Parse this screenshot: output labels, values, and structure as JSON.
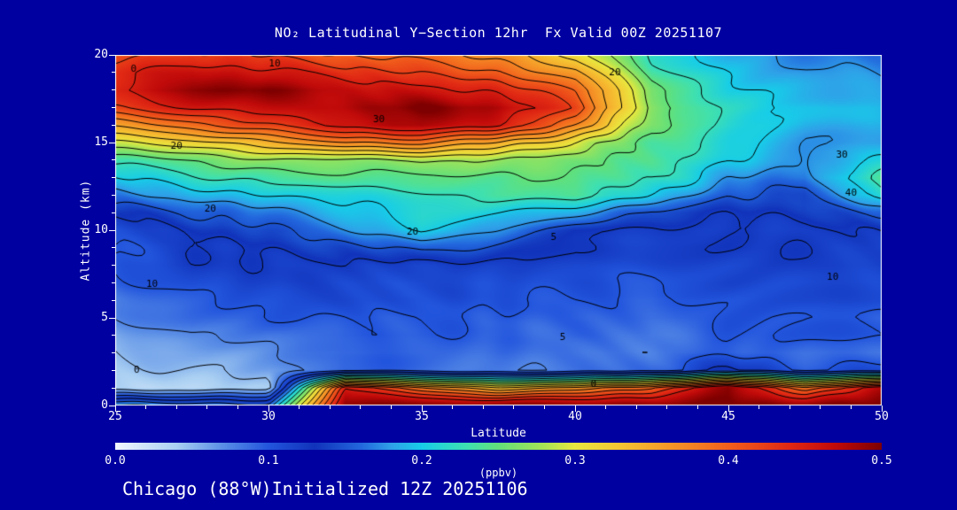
{
  "colors": {
    "background": "#0000A1",
    "frame": "#FFFFFF",
    "text": "#FFFFFF",
    "contour": "#000000"
  },
  "header": {
    "title": "NO₂ Latitudinal Y−Section 12hr  Fx Valid 00Z 20251107"
  },
  "footer": {
    "text": "Chicago (88°W)Initialized 12Z 20251106"
  },
  "axes": {
    "y_label": "Altitude (km)",
    "x_label": "Latitude",
    "y_ticks": [
      0,
      5,
      10,
      15,
      20
    ],
    "x_ticks": [
      25,
      30,
      35,
      40,
      45,
      50
    ],
    "y_minor_step": 1,
    "x_minor_step": 1,
    "y_range": [
      0,
      20
    ],
    "x_range": [
      25,
      50
    ]
  },
  "colorbar": {
    "tick_labels": [
      "0.0",
      "0.1",
      "0.2",
      "0.3",
      "0.4",
      "0.5"
    ],
    "units": "(ppbv)",
    "min": 0.0,
    "max": 0.5
  },
  "chart_data": {
    "type": "heatmap",
    "title": "NO₂ Latitudinal Y−Section 12hr  Fx Valid 00Z 20251107",
    "xlabel": "Latitude",
    "ylabel": "Altitude (km)",
    "units": "ppbv",
    "value_range": [
      0,
      0.5
    ],
    "x": [
      25,
      27.5,
      30,
      32.5,
      35,
      37.5,
      40,
      42.5,
      45,
      47.5,
      50
    ],
    "y": [
      0,
      1,
      2,
      3,
      4,
      5,
      6,
      7,
      8,
      9,
      10,
      11,
      12,
      13,
      14,
      15,
      16,
      17,
      18,
      19,
      20
    ],
    "values": [
      [
        0.18,
        0.17,
        0.15,
        0.5,
        0.5,
        0.5,
        0.5,
        0.5,
        0.5,
        0.5,
        0.5
      ],
      [
        0.03,
        0.03,
        0.04,
        0.45,
        0.38,
        0.33,
        0.36,
        0.4,
        0.5,
        0.38,
        0.47
      ],
      [
        0.04,
        0.05,
        0.06,
        0.1,
        0.09,
        0.08,
        0.08,
        0.09,
        0.13,
        0.1,
        0.11
      ],
      [
        0.05,
        0.06,
        0.07,
        0.09,
        0.09,
        0.09,
        0.08,
        0.08,
        0.1,
        0.09,
        0.09
      ],
      [
        0.06,
        0.08,
        0.08,
        0.1,
        0.1,
        0.09,
        0.09,
        0.08,
        0.1,
        0.1,
        0.1
      ],
      [
        0.07,
        0.09,
        0.1,
        0.1,
        0.1,
        0.1,
        0.09,
        0.09,
        0.1,
        0.1,
        0.1
      ],
      [
        0.08,
        0.1,
        0.11,
        0.11,
        0.11,
        0.1,
        0.1,
        0.09,
        0.1,
        0.11,
        0.11
      ],
      [
        0.09,
        0.11,
        0.12,
        0.11,
        0.11,
        0.11,
        0.11,
        0.1,
        0.11,
        0.11,
        0.11
      ],
      [
        0.1,
        0.12,
        0.12,
        0.12,
        0.12,
        0.12,
        0.11,
        0.11,
        0.11,
        0.12,
        0.12
      ],
      [
        0.1,
        0.12,
        0.13,
        0.14,
        0.16,
        0.14,
        0.12,
        0.12,
        0.12,
        0.12,
        0.12
      ],
      [
        0.11,
        0.13,
        0.14,
        0.17,
        0.2,
        0.17,
        0.13,
        0.12,
        0.12,
        0.12,
        0.13
      ],
      [
        0.13,
        0.15,
        0.17,
        0.19,
        0.21,
        0.2,
        0.18,
        0.14,
        0.13,
        0.13,
        0.16
      ],
      [
        0.17,
        0.19,
        0.2,
        0.21,
        0.22,
        0.23,
        0.24,
        0.2,
        0.15,
        0.14,
        0.22
      ],
      [
        0.2,
        0.22,
        0.23,
        0.24,
        0.24,
        0.24,
        0.25,
        0.23,
        0.18,
        0.16,
        0.24
      ],
      [
        0.23,
        0.25,
        0.27,
        0.27,
        0.28,
        0.27,
        0.26,
        0.24,
        0.2,
        0.17,
        0.2
      ],
      [
        0.29,
        0.31,
        0.34,
        0.37,
        0.38,
        0.35,
        0.3,
        0.24,
        0.21,
        0.18,
        0.18
      ],
      [
        0.36,
        0.39,
        0.42,
        0.46,
        0.48,
        0.45,
        0.38,
        0.26,
        0.22,
        0.19,
        0.18
      ],
      [
        0.42,
        0.45,
        0.46,
        0.48,
        0.5,
        0.48,
        0.42,
        0.27,
        0.22,
        0.2,
        0.19
      ],
      [
        0.45,
        0.49,
        0.5,
        0.47,
        0.46,
        0.44,
        0.4,
        0.26,
        0.21,
        0.19,
        0.18
      ],
      [
        0.44,
        0.47,
        0.46,
        0.44,
        0.42,
        0.4,
        0.36,
        0.24,
        0.2,
        0.18,
        0.17
      ],
      [
        0.41,
        0.43,
        0.42,
        0.4,
        0.39,
        0.37,
        0.32,
        0.22,
        0.19,
        0.17,
        0.16
      ]
    ],
    "ripple": 0.008,
    "colormap": [
      [
        0.0,
        "#F2F7FF"
      ],
      [
        0.04,
        "#A9CFF2"
      ],
      [
        0.07,
        "#5A8EE6"
      ],
      [
        0.1,
        "#2255DD"
      ],
      [
        0.13,
        "#1133BB"
      ],
      [
        0.16,
        "#2266DD"
      ],
      [
        0.18,
        "#2FA1E8"
      ],
      [
        0.2,
        "#17CDE8"
      ],
      [
        0.23,
        "#3FE0B0"
      ],
      [
        0.25,
        "#62E07A"
      ],
      [
        0.28,
        "#A8E455"
      ],
      [
        0.3,
        "#E8E83F"
      ],
      [
        0.33,
        "#F5C433"
      ],
      [
        0.36,
        "#F59A28"
      ],
      [
        0.4,
        "#F2601C"
      ],
      [
        0.44,
        "#E02814"
      ],
      [
        0.47,
        "#C00A0A"
      ],
      [
        0.5,
        "#7E0000"
      ]
    ],
    "contour_levels": [
      0.025,
      0.05,
      0.075,
      0.1,
      0.125,
      0.15,
      0.175,
      0.2,
      0.225,
      0.25,
      0.275,
      0.3,
      0.325,
      0.35,
      0.375,
      0.4,
      0.425,
      0.45
    ],
    "contour_labels": [
      {
        "text": "0",
        "lat": 25.6,
        "alt": 19.2
      },
      {
        "text": "10",
        "lat": 30.2,
        "alt": 19.5
      },
      {
        "text": "20",
        "lat": 41.3,
        "alt": 19.0
      },
      {
        "text": "30",
        "lat": 33.6,
        "alt": 16.3
      },
      {
        "text": "20",
        "lat": 27.0,
        "alt": 14.8
      },
      {
        "text": "30",
        "lat": 48.7,
        "alt": 14.3
      },
      {
        "text": "40",
        "lat": 49.0,
        "alt": 12.1
      },
      {
        "text": "20",
        "lat": 28.1,
        "alt": 11.2
      },
      {
        "text": "20",
        "lat": 34.7,
        "alt": 9.9
      },
      {
        "text": "5",
        "lat": 39.3,
        "alt": 9.6
      },
      {
        "text": "10",
        "lat": 26.2,
        "alt": 6.9
      },
      {
        "text": "10",
        "lat": 48.4,
        "alt": 7.3
      },
      {
        "text": "5",
        "lat": 39.6,
        "alt": 3.9
      },
      {
        "text": "0",
        "lat": 25.7,
        "alt": 2.0
      },
      {
        "text": "0",
        "lat": 40.6,
        "alt": 1.2
      }
    ]
  }
}
